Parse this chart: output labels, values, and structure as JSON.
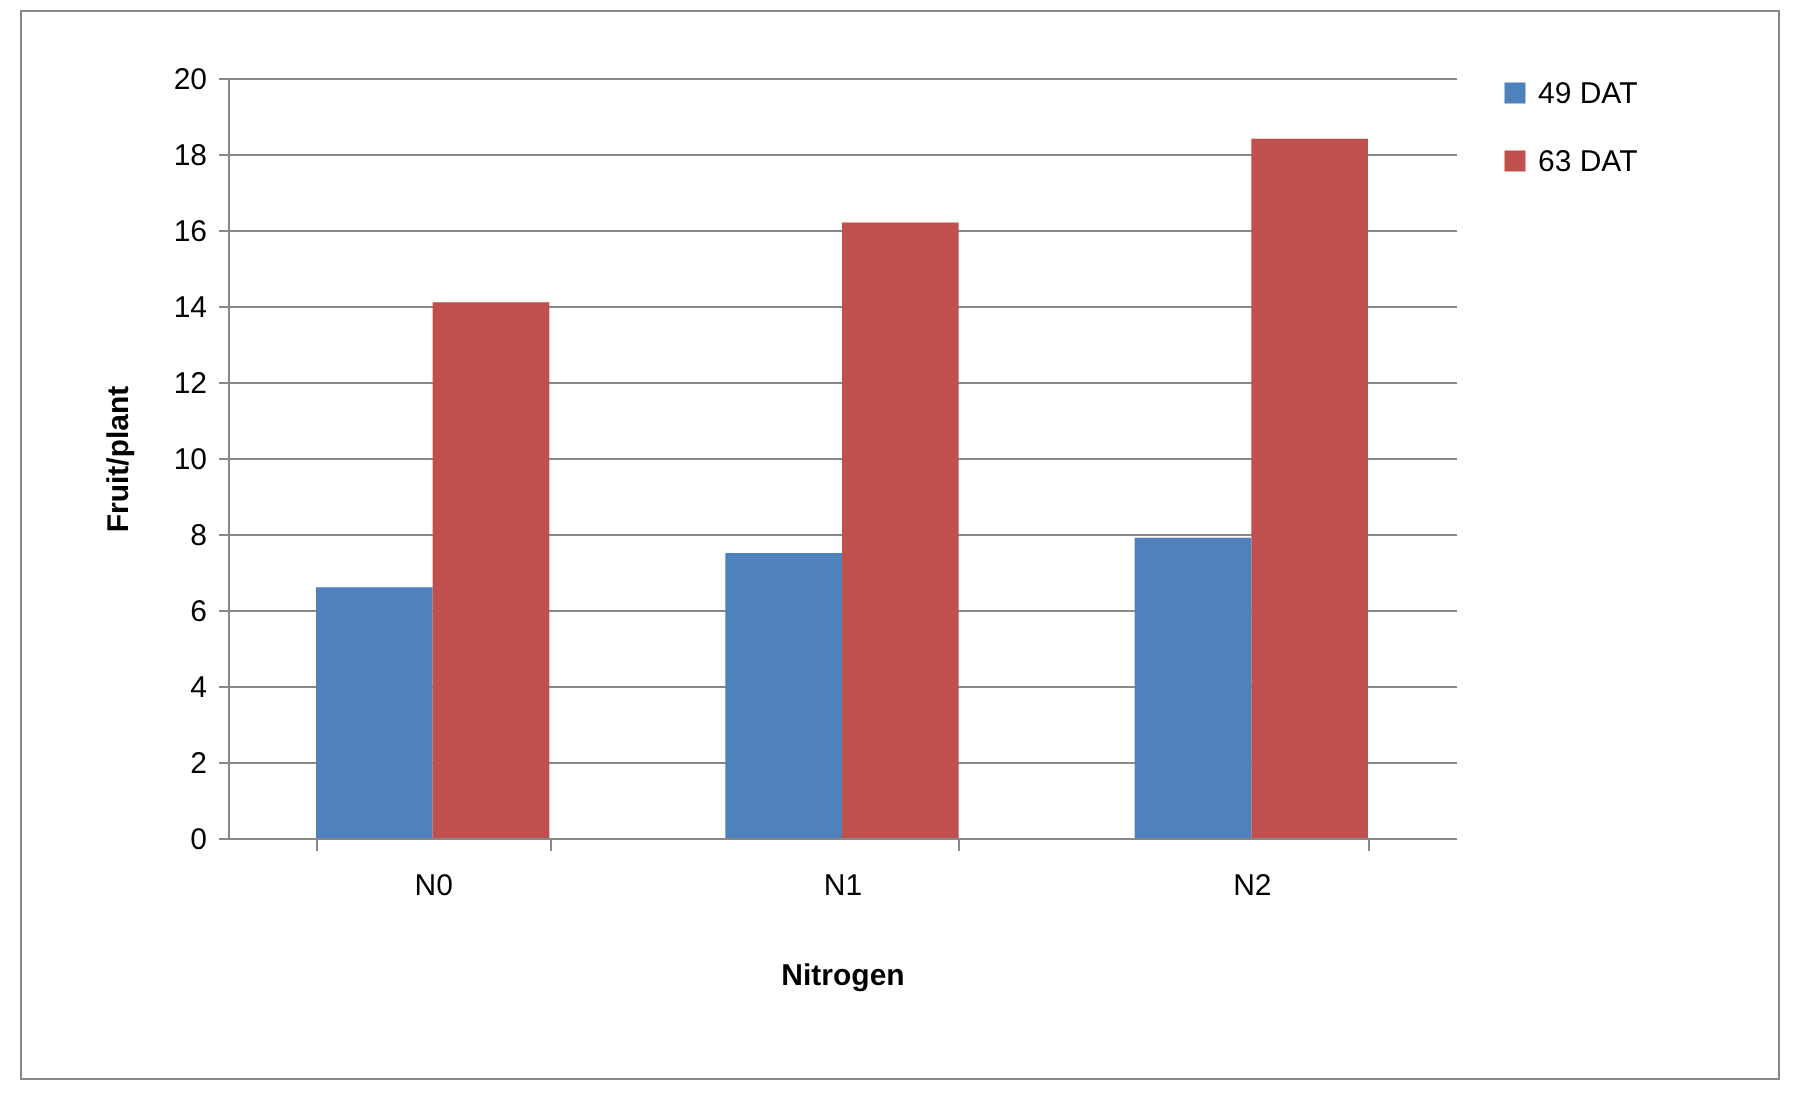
{
  "chart_data": {
    "type": "bar",
    "xlabel": "Nitrogen",
    "ylabel": "Fruit/plant",
    "categories": [
      "N0",
      "N1",
      "N2"
    ],
    "series": [
      {
        "name": "49 DAT",
        "color": "#4f81bd",
        "values": [
          6.6,
          7.5,
          7.9
        ]
      },
      {
        "name": "63 DAT",
        "color": "#c0504d",
        "values": [
          14.1,
          16.2,
          18.4
        ]
      }
    ],
    "ylim": [
      0,
      20
    ],
    "yticks": [
      0,
      2,
      4,
      6,
      8,
      10,
      12,
      14,
      16,
      18,
      20
    ],
    "grid": "y",
    "legend": "right"
  }
}
